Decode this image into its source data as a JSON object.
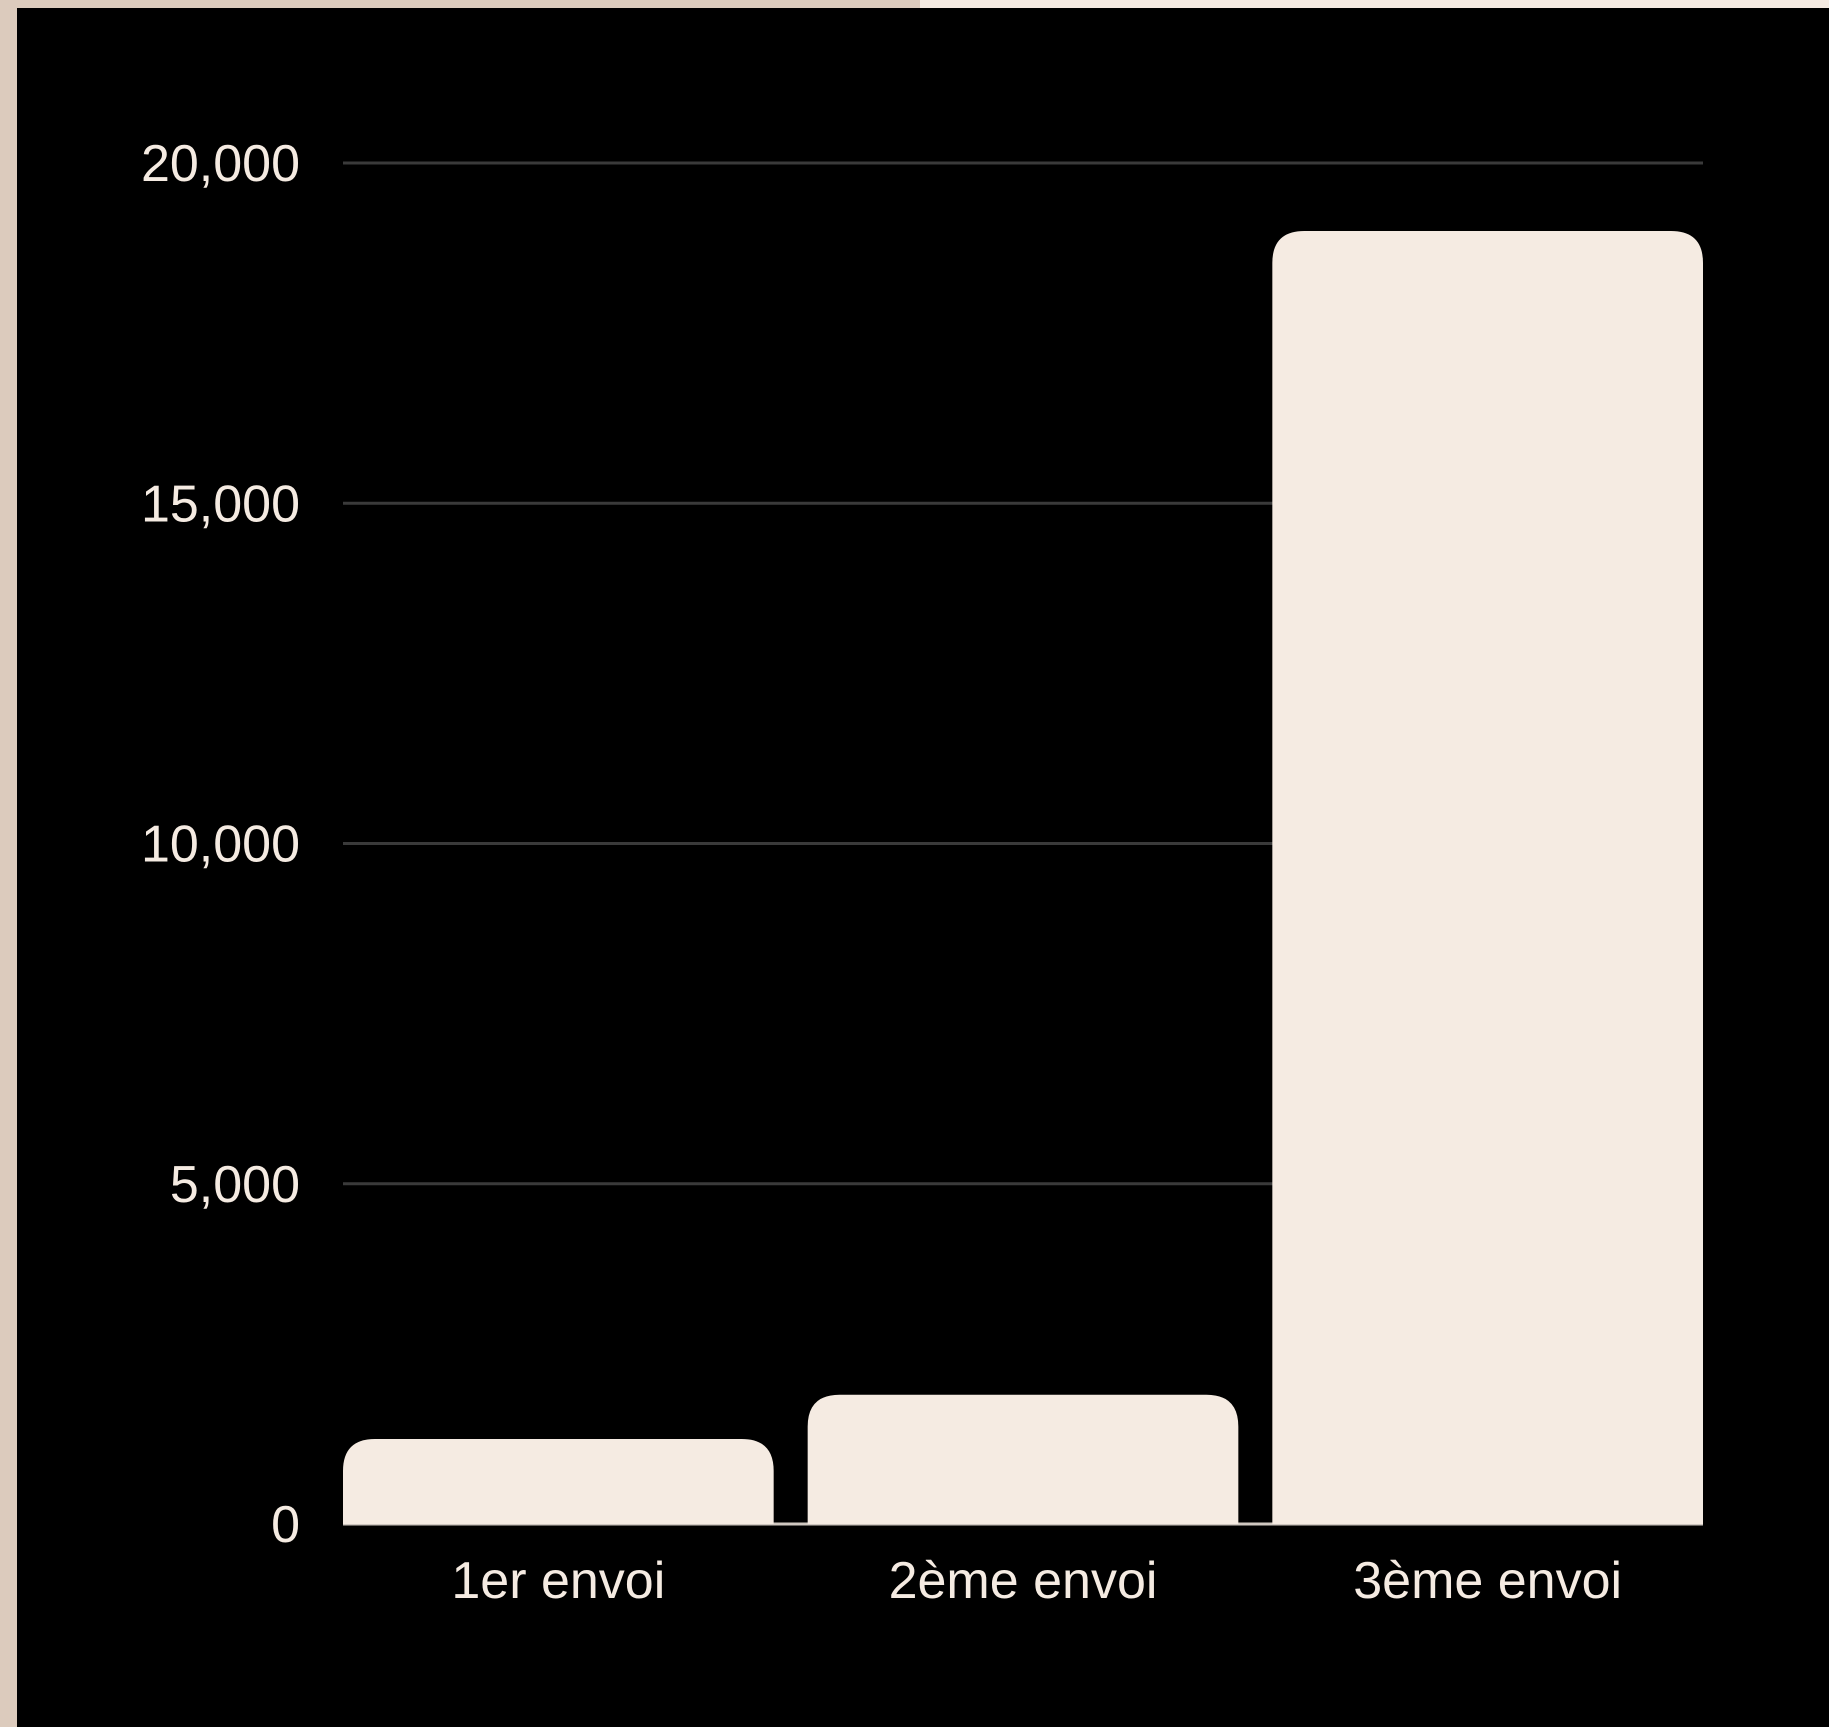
{
  "chart_data": {
    "type": "bar",
    "categories": [
      "1er envoi",
      "2ème envoi",
      "3ème envoi"
    ],
    "values": [
      1250,
      1900,
      19000
    ],
    "ylim": [
      0,
      20000
    ],
    "yticks": [
      0,
      5000,
      10000,
      15000,
      20000
    ],
    "ytick_labels": [
      "0",
      "5,000",
      "10,000",
      "15,000",
      "20,000"
    ],
    "title": "",
    "xlabel": "",
    "ylabel": "",
    "grid": true,
    "legend": "none",
    "colors": {
      "bar": "#f5ebe2",
      "background": "#000000",
      "grid": "#3a3a3a",
      "text": "#f5ebe2"
    }
  }
}
